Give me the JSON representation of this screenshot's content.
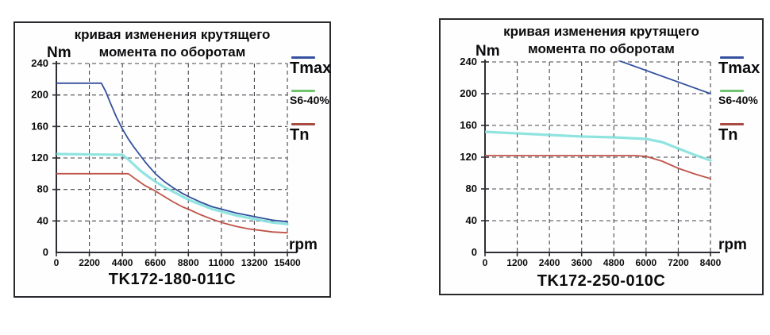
{
  "chart_data": [
    {
      "type": "line",
      "title": "кривая изменения крутящего момента по оборотам",
      "title_line1": "кривая изменения крутящего",
      "title_line2": "момента по оборотам",
      "ylabel": "Nm",
      "xlabel": "rpm",
      "caption": "TK172-180-011C",
      "xlim": [
        0,
        15400
      ],
      "ylim": [
        0,
        240
      ],
      "x_ticks": [
        0,
        2200,
        4400,
        6600,
        8800,
        11000,
        13200,
        15400
      ],
      "y_ticks": [
        0,
        40,
        80,
        120,
        160,
        200,
        240
      ],
      "grid": true,
      "legend_position": "right-outside",
      "colors": {
        "grid": "#45454f",
        "axis": "#2d2d33"
      },
      "series": [
        {
          "name": "Tmax",
          "color": "#35509e",
          "legend_color": "#35509e",
          "width": 1.8,
          "points": [
            [
              0,
              215
            ],
            [
              3000,
              215
            ],
            [
              3300,
              204
            ],
            [
              3600,
              190
            ],
            [
              4000,
              172
            ],
            [
              4400,
              157
            ],
            [
              4800,
              144
            ],
            [
              5200,
              133
            ],
            [
              5600,
              123
            ],
            [
              6000,
              113
            ],
            [
              6600,
              100
            ],
            [
              7200,
              90
            ],
            [
              7800,
              82
            ],
            [
              8400,
              75
            ],
            [
              8800,
              71
            ],
            [
              9600,
              64
            ],
            [
              10400,
              58
            ],
            [
              11200,
              54
            ],
            [
              12000,
              50
            ],
            [
              12800,
              47
            ],
            [
              13600,
              44
            ],
            [
              14400,
              41
            ],
            [
              15400,
              39
            ]
          ]
        },
        {
          "name": "S6-40%",
          "color": "#7cdfda",
          "legend_color": "#6fc46f",
          "width": 3.2,
          "points": [
            [
              0,
              125
            ],
            [
              4400,
              124
            ],
            [
              4800,
              118
            ],
            [
              5200,
              111
            ],
            [
              5600,
              104
            ],
            [
              6000,
              98
            ],
            [
              6600,
              90
            ],
            [
              7200,
              83
            ],
            [
              7800,
              77
            ],
            [
              8400,
              71
            ],
            [
              8800,
              67
            ],
            [
              9600,
              61
            ],
            [
              10400,
              55
            ],
            [
              11200,
              51
            ],
            [
              12000,
              47
            ],
            [
              12800,
              44
            ],
            [
              13600,
              41
            ],
            [
              14400,
              38
            ],
            [
              15400,
              36
            ]
          ]
        },
        {
          "name": "Tn",
          "color": "#bf5449",
          "legend_color": "#a94a42",
          "width": 1.8,
          "points": [
            [
              0,
              100
            ],
            [
              4800,
              100
            ],
            [
              5300,
              93
            ],
            [
              5900,
              85
            ],
            [
              6600,
              78
            ],
            [
              7200,
              71
            ],
            [
              7800,
              64
            ],
            [
              8400,
              58
            ],
            [
              8800,
              55
            ],
            [
              9600,
              48
            ],
            [
              10400,
              42
            ],
            [
              11200,
              37
            ],
            [
              12000,
              33
            ],
            [
              12800,
              30
            ],
            [
              13600,
              28
            ],
            [
              14400,
              26
            ],
            [
              15400,
              25
            ]
          ]
        }
      ]
    },
    {
      "type": "line",
      "title": "кривая изменения крутящего момента по оборотам",
      "title_line1": "кривая изменения крутящего",
      "title_line2": "момента по оборотам",
      "ylabel": "Nm",
      "xlabel": "rpm",
      "caption": "TK172-250-010C",
      "xlim": [
        0,
        8400
      ],
      "ylim": [
        0,
        240
      ],
      "x_ticks": [
        0,
        1200,
        2400,
        3600,
        4800,
        6000,
        7200,
        8400
      ],
      "y_ticks": [
        0,
        40,
        80,
        120,
        160,
        200,
        240
      ],
      "grid": true,
      "legend_position": "right-outside",
      "colors": {
        "grid": "#45454f",
        "axis": "#2d2d33"
      },
      "series": [
        {
          "name": "Tmax",
          "color": "#35509e",
          "legend_color": "#35509e",
          "width": 1.8,
          "points": [
            [
              0,
              250
            ],
            [
              4300,
              250
            ],
            [
              8400,
              200
            ]
          ]
        },
        {
          "name": "S6-40%",
          "color": "#7cdfda",
          "legend_color": "#6fc46f",
          "width": 3.2,
          "points": [
            [
              0,
              152
            ],
            [
              1200,
              150
            ],
            [
              2400,
              148
            ],
            [
              3600,
              146
            ],
            [
              4800,
              145
            ],
            [
              6000,
              143
            ],
            [
              6600,
              139
            ],
            [
              7200,
              131
            ],
            [
              7800,
              123
            ],
            [
              8400,
              116
            ]
          ]
        },
        {
          "name": "Tn",
          "color": "#bf5449",
          "legend_color": "#a94a42",
          "width": 1.8,
          "points": [
            [
              0,
              122
            ],
            [
              5600,
              122
            ],
            [
              6000,
              121
            ],
            [
              6600,
              115
            ],
            [
              7200,
              106
            ],
            [
              7800,
              99
            ],
            [
              8400,
              93
            ]
          ]
        }
      ]
    }
  ]
}
